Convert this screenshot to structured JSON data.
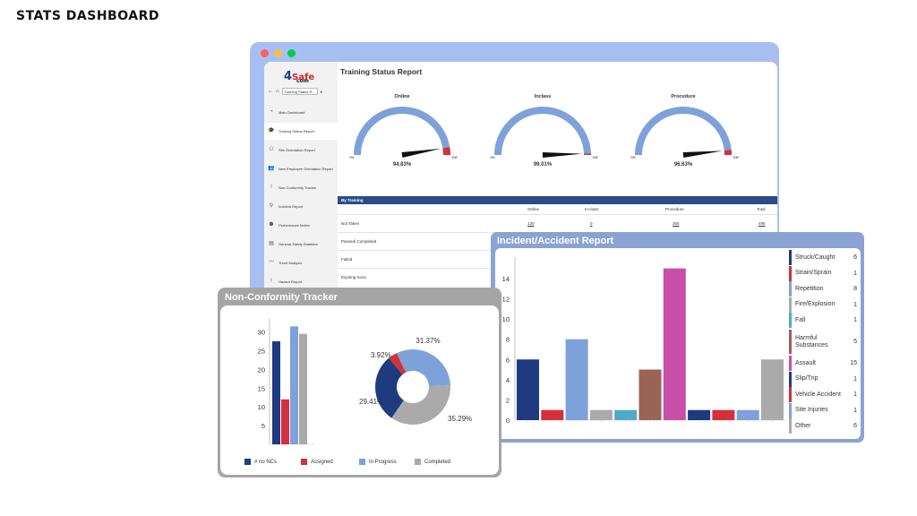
{
  "page": {
    "title": "STATS DASHBOARD"
  },
  "window": {
    "dots": [
      "#ff605c",
      "#ffbd44",
      "#00ca4e"
    ]
  },
  "sidebar": {
    "logo": {
      "four": "4",
      "safe": "Safe",
      "com": "com"
    },
    "dropdown": "Training Status R",
    "items": [
      {
        "label": "Main Dashboard",
        "icon": "pie-icon",
        "glyph": "◔"
      },
      {
        "label": "Training Status Report",
        "icon": "graduation-cap-icon",
        "glyph": "🎓"
      },
      {
        "label": "Site Orientation Report",
        "icon": "hierarchy-icon",
        "glyph": "⚇"
      },
      {
        "label": "New Employee Orientation Report",
        "icon": "users-icon",
        "glyph": "👥"
      },
      {
        "label": "Non-Conformity Tracker",
        "icon": "exclamation-icon",
        "glyph": "!"
      },
      {
        "label": "Incident Report",
        "icon": "person-icon",
        "glyph": "⚲"
      },
      {
        "label": "Performance Matrix",
        "icon": "team-icon",
        "glyph": "⚉"
      },
      {
        "label": "General Safety Statistics",
        "icon": "stats-icon",
        "glyph": "▤"
      },
      {
        "label": "Trend Analysis",
        "icon": "trend-icon",
        "glyph": "〰"
      },
      {
        "label": "Hazard Report",
        "icon": "exclamation-icon",
        "glyph": "!"
      }
    ]
  },
  "report": {
    "title": "Training Status Report",
    "gauges": [
      {
        "label": "Online",
        "value": "94.83%",
        "fraction": 0.9483,
        "min": "0%",
        "max": "100%"
      },
      {
        "label": "Inclass",
        "value": "99.01%",
        "fraction": 0.9901,
        "min": "0%",
        "max": "100%"
      },
      {
        "label": "Procedure",
        "value": "96.63%",
        "fraction": 0.9663,
        "min": "0%",
        "max": "100%"
      }
    ],
    "table": {
      "section": "By Training",
      "columns": [
        "Online",
        "In-class",
        "Procedure",
        "Total"
      ],
      "rows": [
        {
          "label": "Not Taken",
          "values": [
            "130",
            "0",
            "365",
            "495"
          ]
        },
        {
          "label": "Passed/ Completed",
          "values": [
            "",
            "",
            "",
            ""
          ]
        },
        {
          "label": "Failed",
          "values": [
            "",
            "",
            "",
            ""
          ]
        },
        {
          "label": "Expiring Soon",
          "values": [
            "",
            "",
            "",
            ""
          ]
        }
      ]
    }
  },
  "incident": {
    "title": "Incident/Accident Report",
    "legend": [
      {
        "label": "Struck/Caught",
        "count": "6",
        "color": "#1f3b80"
      },
      {
        "label": "Strain/Sprain",
        "count": "1",
        "color": "#d3303a"
      },
      {
        "label": "Repetition",
        "count": "8",
        "color": "#7ea1d9"
      },
      {
        "label": "Fire/Explosion",
        "count": "1",
        "color": "#aaaaaa"
      },
      {
        "label": "Fall",
        "count": "1",
        "color": "#52aac9"
      },
      {
        "label": "Harmful Substances",
        "count": "5",
        "color": "#9a6356"
      },
      {
        "label": "Assault",
        "count": "15",
        "color": "#c84fa7"
      },
      {
        "label": "Slip/Trip",
        "count": "1",
        "color": "#1f3b80"
      },
      {
        "label": "Vehicle Accident",
        "count": "1",
        "color": "#d3303a"
      },
      {
        "label": "Site Injuries",
        "count": "1",
        "color": "#7ea1d9"
      },
      {
        "label": "Other",
        "count": "6",
        "color": "#aaaaaa"
      }
    ]
  },
  "nonconformity": {
    "title": "Non-Conformity Tracker",
    "legend": [
      {
        "label": "# no NCs",
        "color": "#1f3b80"
      },
      {
        "label": "Assigned",
        "color": "#d3303a"
      },
      {
        "label": "In Progress",
        "color": "#7ea1d9"
      },
      {
        "label": "Completed",
        "color": "#aaaaaa"
      }
    ]
  },
  "chart_data": [
    {
      "type": "bar",
      "title": "Incident/Accident Report",
      "categories": [
        "Struck/Caught",
        "Strain/Sprain",
        "Repetition",
        "Fire/Explosion",
        "Fall",
        "Harmful Substances",
        "Assault",
        "Slip/Trip",
        "Vehicle Accident",
        "Site Injuries",
        "Other"
      ],
      "values": [
        6,
        1,
        8,
        1,
        1,
        5,
        15,
        1,
        1,
        1,
        6
      ],
      "colors": [
        "#1f3b80",
        "#d3303a",
        "#7ea1d9",
        "#aaaaaa",
        "#52aac9",
        "#9a6356",
        "#c84fa7",
        "#1f3b80",
        "#d3303a",
        "#7ea1d9",
        "#aaaaaa"
      ],
      "yticks": [
        0,
        2,
        4,
        6,
        8,
        10,
        12,
        14
      ],
      "ylim": [
        0,
        15.5
      ]
    },
    {
      "type": "bar",
      "title": "Non-Conformity Tracker",
      "categories": [
        "# no NCs",
        "Assigned",
        "In Progress",
        "Completed"
      ],
      "values": [
        27.5,
        12,
        31.5,
        29.5
      ],
      "colors": [
        "#1f3b80",
        "#d3303a",
        "#7ea1d9",
        "#aaaaaa"
      ],
      "yticks": [
        5,
        10,
        15,
        20,
        25,
        30
      ],
      "ylim": [
        0,
        33
      ]
    },
    {
      "type": "pie",
      "title": "Non-Conformity Tracker",
      "labels": [
        "In Progress",
        "Completed",
        "# no NCs",
        "Assigned"
      ],
      "values": [
        31.37,
        35.29,
        29.41,
        3.92
      ],
      "value_labels": [
        "31.37%",
        "35.29%",
        "29.41%",
        "3.92%"
      ],
      "colors": [
        "#7ea1d9",
        "#aaaaaa",
        "#1f3b80",
        "#d3303a"
      ]
    }
  ]
}
